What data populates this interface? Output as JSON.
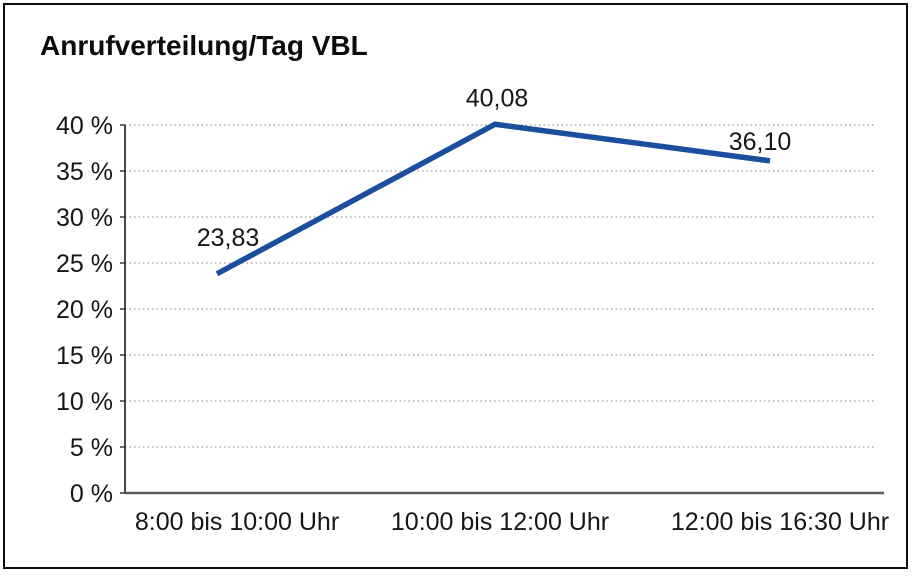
{
  "chart_data": {
    "type": "line",
    "title": "Anrufverteilung/Tag VBL",
    "categories": [
      "8:00 bis 10:00 Uhr",
      "10:00 bis 12:00 Uhr",
      "12:00 bis 16:30 Uhr"
    ],
    "series": [
      {
        "name": "Anrufverteilung",
        "values": [
          23.83,
          40.08,
          36.1
        ],
        "value_labels": [
          "23,83",
          "40,08",
          "36,10"
        ]
      }
    ],
    "xlabel": "",
    "ylabel": "",
    "ylim": [
      0,
      40
    ],
    "ytick_step": 5,
    "ytick_labels": [
      "0 %",
      "5 %",
      "10 %",
      "15 %",
      "20 %",
      "25 %",
      "30 %",
      "35 %",
      "40 %"
    ],
    "grid": "horizontal-dotted",
    "legend": "none",
    "colors": {
      "line": "#1b4f9e",
      "gridline": "#9b9b9b",
      "y_axis": "#2a2a2a",
      "x_axis": "#5a5a5a",
      "text": "#161616",
      "frame_border": "#0c0c0c",
      "background": "#ffffff"
    }
  }
}
